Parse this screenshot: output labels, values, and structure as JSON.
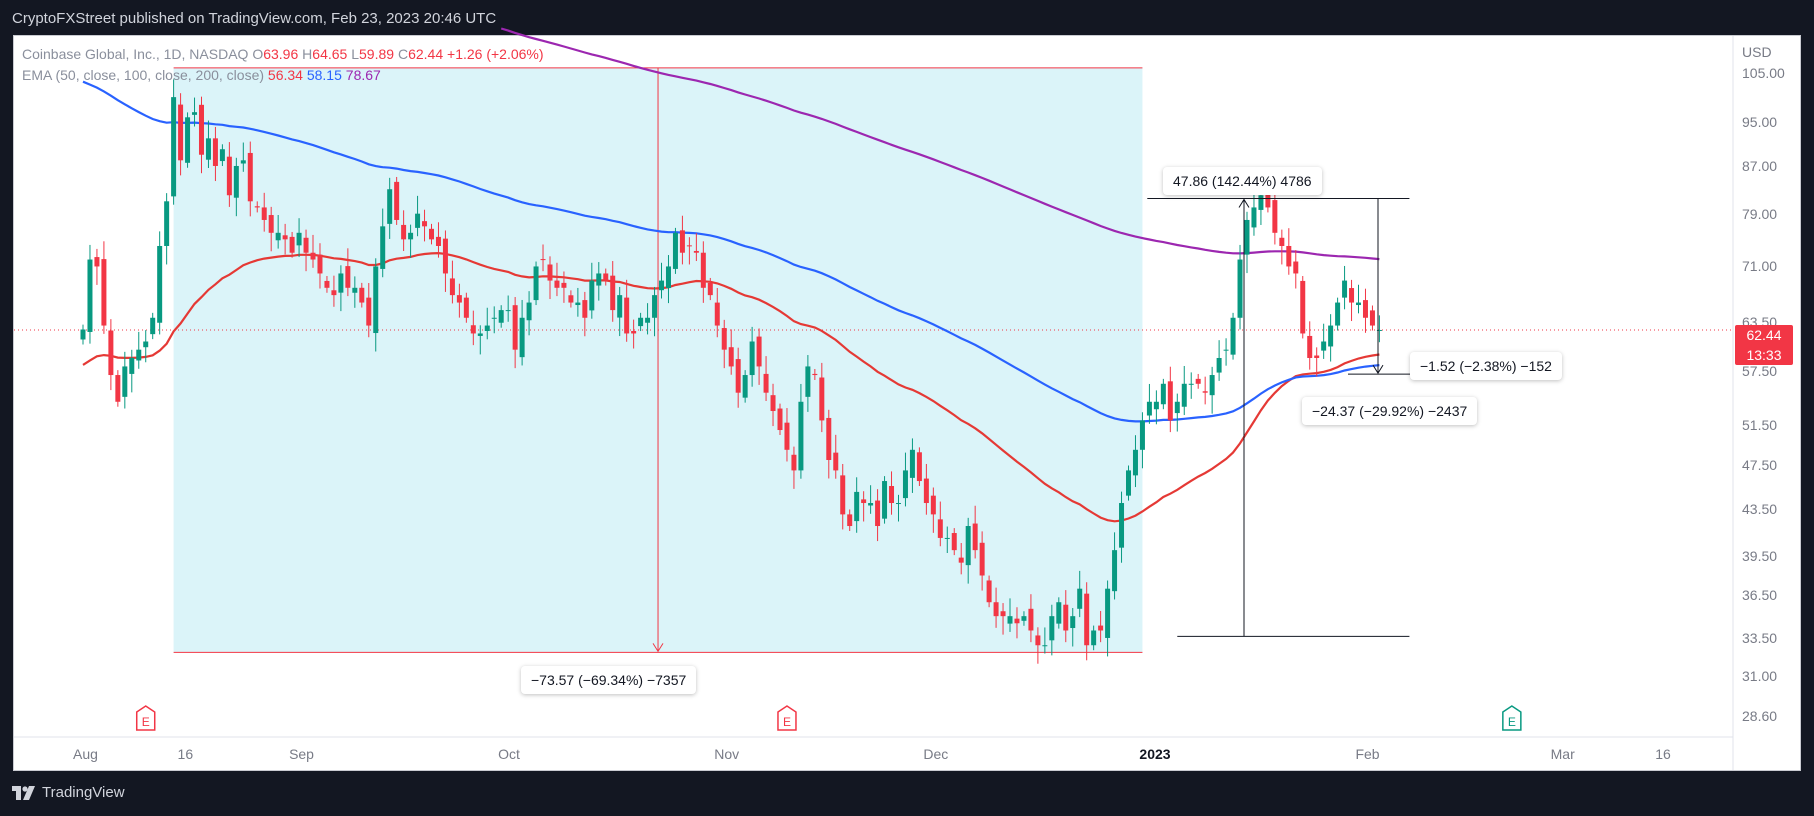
{
  "header": {
    "text": "CryptoFXStreet published on TradingView.com, Feb 23, 2023 20:46 UTC"
  },
  "footer": {
    "brand": "TradingView"
  },
  "legend": {
    "instrument": "Coinbase Global, Inc., 1D, NASDAQ",
    "o_label": "O",
    "o_value": "63.96",
    "h_label": "H",
    "h_value": "64.65",
    "l_label": "L",
    "l_value": "59.89",
    "c_label": "C",
    "c_value": "62.44",
    "change": "+1.26 (+2.06%)",
    "ema_label": "EMA (50, close, 100, close, 200, close)",
    "ema50": "56.34",
    "ema100": "58.15",
    "ema200": "78.67"
  },
  "price_tag": {
    "price": "62.44",
    "countdown": "13:33"
  },
  "measurements": [
    {
      "text": "−73.57 (−69.34%) −7357"
    },
    {
      "text": "47.86 (142.44%) 4786"
    },
    {
      "text": "−1.52 (−2.38%) −152"
    },
    {
      "text": "−24.37 (−29.92%) −2437"
    }
  ],
  "colors": {
    "up": "#089981",
    "down": "#f23645",
    "ema50": "#e53935",
    "ema100": "#2962ff",
    "ema200": "#9c27b0",
    "range_fill": "#dbf4f9"
  },
  "chart_data": {
    "type": "candlestick",
    "currency": "USD",
    "yticks": [
      "105.00",
      "95.00",
      "87.00",
      "79.00",
      "71.00",
      "63.50",
      "57.50",
      "51.50",
      "47.50",
      "43.50",
      "39.50",
      "36.50",
      "33.50",
      "31.00",
      "28.60"
    ],
    "ytick_values": [
      105,
      95,
      87,
      79,
      71,
      63.5,
      57.5,
      51.5,
      47.5,
      43.5,
      39.5,
      36.5,
      33.5,
      31,
      28.6
    ],
    "scale": "log",
    "xticks": [
      {
        "label": "Aug",
        "bold": false,
        "day": 0
      },
      {
        "label": "16",
        "bold": false,
        "day": 15
      },
      {
        "label": "Sep",
        "bold": false,
        "day": 31
      },
      {
        "label": "Oct",
        "bold": false,
        "day": 61
      },
      {
        "label": "Nov",
        "bold": false,
        "day": 92
      },
      {
        "label": "Dec",
        "bold": false,
        "day": 122
      },
      {
        "label": "2023",
        "bold": true,
        "day": 153
      },
      {
        "label": "Feb",
        "bold": false,
        "day": 184
      },
      {
        "label": "Mar",
        "bold": false,
        "day": 212
      },
      {
        "label": "16",
        "bold": false,
        "day": 227
      }
    ],
    "earnings_days": [
      9,
      101,
      205
    ],
    "closes": [
      62.5,
      72,
      71,
      63,
      57,
      54,
      58,
      59,
      60,
      61,
      64,
      74,
      81,
      100,
      88,
      96,
      97,
      89,
      92,
      87,
      90,
      82,
      87,
      88,
      81,
      80,
      78,
      76,
      76,
      75,
      73,
      76,
      73,
      72,
      70,
      68,
      67,
      70,
      68,
      68,
      66,
      63,
      71,
      77,
      83,
      78,
      75,
      76,
      79,
      77,
      75,
      74,
      70,
      67,
      66,
      64,
      62,
      62,
      63,
      64,
      65,
      65,
      60,
      64,
      66,
      71,
      72,
      69,
      68,
      68,
      66,
      66,
      64,
      69,
      70,
      69,
      65,
      67,
      62,
      62,
      64,
      64,
      67,
      69,
      71,
      76,
      73,
      74,
      73,
      68,
      67,
      63,
      60,
      58,
      55,
      57,
      61,
      58,
      55,
      53,
      51,
      49,
      47,
      54,
      58,
      57,
      52,
      48,
      47,
      43,
      42,
      45,
      44,
      44,
      42,
      46,
      44,
      44,
      47,
      49,
      46,
      44,
      43,
      41,
      41,
      40,
      39,
      42,
      40,
      38,
      36,
      35,
      35,
      35,
      34.5,
      35,
      34,
      33,
      33,
      35,
      36,
      34,
      35,
      37,
      33,
      34,
      34,
      37,
      40,
      44,
      47,
      49,
      52,
      54,
      54,
      56,
      52,
      54,
      56,
      56,
      56,
      55,
      57,
      59,
      60,
      64,
      72,
      78,
      80,
      82,
      80,
      76,
      74,
      71,
      70,
      62,
      59,
      59,
      61,
      63,
      66,
      69,
      66,
      66,
      64,
      63,
      62.44
    ],
    "measure_down": {
      "start_day": 13,
      "end_day": 152,
      "from": 106.1,
      "to": 32.53,
      "change": "−73.57",
      "pct": "−69.34%"
    },
    "measure_up": {
      "start_day": 157,
      "end_day": 186,
      "from": 33.6,
      "to": 81.46,
      "change": "47.86",
      "pct": "142.44%"
    },
    "ema_periods": [
      50,
      100,
      200
    ]
  }
}
